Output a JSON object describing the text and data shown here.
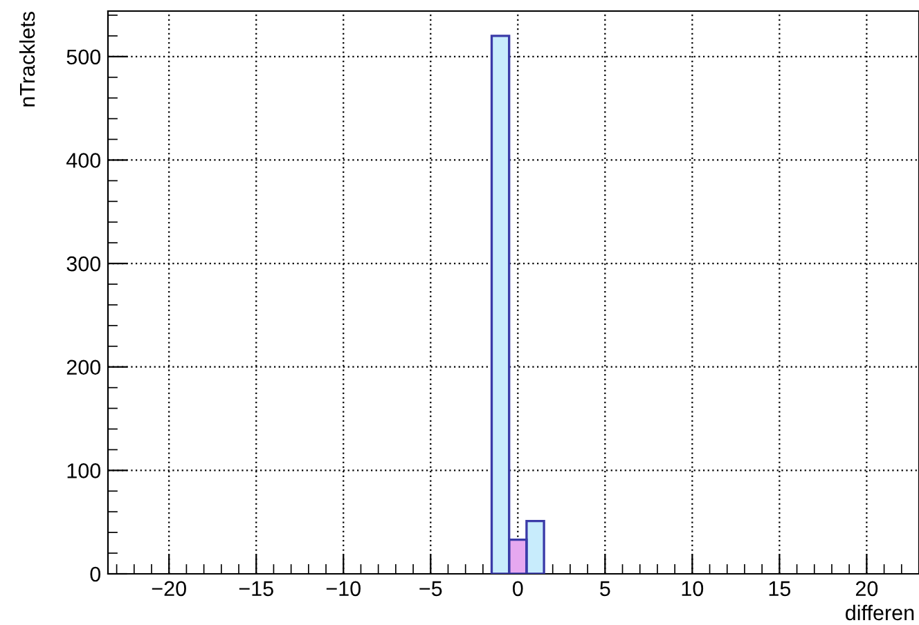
{
  "chart_data": {
    "type": "histogram",
    "xlabel": "differen",
    "ylabel": "nTracklets",
    "bins": [
      -1.5,
      -0.5,
      0.5,
      1.5
    ],
    "series": [
      {
        "color": "#c8ecfc",
        "values": [
          520,
          0,
          51
        ]
      },
      {
        "color": "#e6a8f0",
        "values": [
          0,
          33,
          0
        ]
      }
    ],
    "xlim": [
      -23.5,
      23.0
    ],
    "xticks": [
      {
        "value": -20,
        "label": "−20"
      },
      {
        "value": -15,
        "label": "−15"
      },
      {
        "value": -10,
        "label": "−10"
      },
      {
        "value": -5,
        "label": "−5"
      },
      0,
      5,
      10,
      15,
      20
    ],
    "ylim": [
      0,
      544
    ],
    "yticks": [
      0,
      100,
      200,
      300,
      400,
      500
    ],
    "grid": true
  }
}
